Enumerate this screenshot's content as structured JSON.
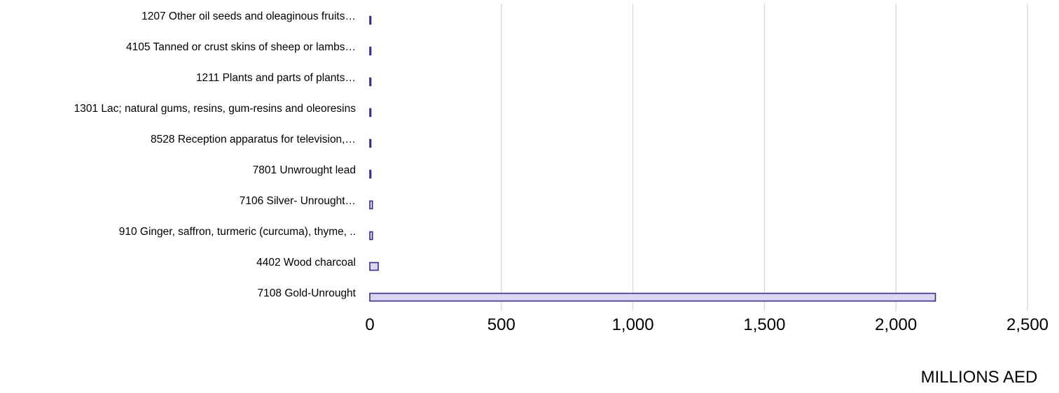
{
  "chart_data": {
    "type": "bar",
    "orientation": "horizontal",
    "categories": [
      "1207 Other oil seeds and oleaginous fruits…",
      "4105 Tanned or crust skins of sheep or lambs…",
      "1211 Plants and parts of plants…",
      "1301 Lac; natural gums, resins, gum-resins and oleoresins",
      "8528 Reception apparatus for television,…",
      "7801 Unwrought lead",
      "7106 Silver- Unrought…",
      "910 Ginger, saffron, turmeric (curcuma), thyme, ..",
      "4402 Wood charcoal",
      "7108 Gold-Unrought"
    ],
    "values": [
      1,
      1,
      1,
      1,
      2,
      2,
      10,
      10,
      32,
      2150
    ],
    "xlim": [
      0,
      2500
    ],
    "xticks": [
      0,
      500,
      1000,
      1500,
      2000,
      2500
    ],
    "xtick_labels": [
      "0",
      "500",
      "1,000",
      "1,500",
      "2,000",
      "2,500"
    ],
    "xlabel": "MILLIONS AED",
    "title": "",
    "grid": true,
    "legend": "none",
    "colors": {
      "bar_fill": "#ddd6f3",
      "bar_stroke": "#3b2a84",
      "grid": "#d9d9d9"
    }
  }
}
